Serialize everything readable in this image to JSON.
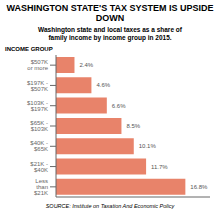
{
  "chart_data": {
    "type": "bar",
    "orientation": "horizontal",
    "title": "WASHINGTON STATE'S TAX SYSTEM IS UPSIDE DOWN",
    "subtitle": "Washington state and local taxes as a share of\nfamily income by income group in 2015.",
    "ylabel": "INCOME GROUP",
    "source": "SOURCE: Institute on Taxation And Economic Policy",
    "categories": [
      "$507K or more",
      "$197K - $507K",
      "$103K - $197K",
      "$65K - $103K",
      "$40K - $65K",
      "$21K - $40K",
      "Less than $21K"
    ],
    "values": [
      2.4,
      4.6,
      6.6,
      8.5,
      10.1,
      11.7,
      16.8
    ],
    "value_labels": [
      "2.4%",
      "4.6%",
      "6.6%",
      "8.5%",
      "10.1%",
      "11.7%",
      "16.8%"
    ],
    "data_labels": true,
    "color": "#E8836A",
    "xlim": [
      0,
      20
    ],
    "tick_labels": "y",
    "grid": false
  }
}
